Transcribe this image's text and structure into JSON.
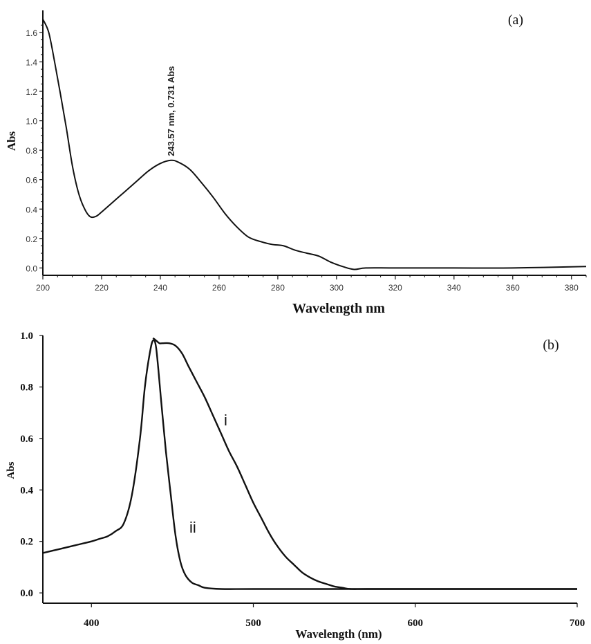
{
  "chart_data": [
    {
      "type": "line",
      "panel_label": "(a)",
      "title": "",
      "xlabel": "Wavelength nm",
      "ylabel": "Abs",
      "xlim": [
        200,
        385
      ],
      "ylim": [
        -0.05,
        1.75
      ],
      "xticks": [
        "200",
        "220",
        "240",
        "260",
        "280",
        "300",
        "320",
        "340",
        "360",
        "380"
      ],
      "yticks": [
        "0.0",
        "0.2",
        "0.4",
        "0.6",
        "0.8",
        "1.0",
        "1.2",
        "1.4",
        "1.6"
      ],
      "grid": false,
      "annotations": [
        {
          "text": "243.57 nm, 0.731 Abs",
          "x": 243.57,
          "y": 0.731
        }
      ],
      "series": [
        {
          "x": [
            200,
            202,
            204,
            206,
            208,
            210,
            212,
            214,
            216,
            218,
            220,
            224,
            228,
            232,
            236,
            240,
            243.57,
            246,
            250,
            254,
            258,
            262,
            266,
            270,
            274,
            278,
            282,
            286,
            290,
            294,
            298,
            302,
            306,
            310,
            320,
            340,
            360,
            385
          ],
          "y": [
            1.69,
            1.6,
            1.4,
            1.18,
            0.95,
            0.7,
            0.52,
            0.41,
            0.35,
            0.35,
            0.38,
            0.45,
            0.52,
            0.59,
            0.66,
            0.71,
            0.731,
            0.72,
            0.67,
            0.58,
            0.48,
            0.37,
            0.28,
            0.21,
            0.18,
            0.16,
            0.15,
            0.12,
            0.1,
            0.08,
            0.04,
            0.01,
            -0.01,
            0.0,
            0.0,
            0.0,
            0.0,
            0.01
          ]
        }
      ]
    },
    {
      "type": "line",
      "panel_label": "(b)",
      "title": "",
      "xlabel": "Wavelength (nm)",
      "ylabel": "Abs",
      "xlim": [
        370,
        700
      ],
      "ylim": [
        -0.04,
        1.0
      ],
      "xticks": [
        "400",
        "500",
        "600",
        "700"
      ],
      "yticks": [
        "0.0",
        "0.2",
        "0.4",
        "0.6",
        "0.8",
        "1.0"
      ],
      "grid": false,
      "series": [
        {
          "name": "i",
          "x": [
            438,
            440,
            442,
            444,
            448,
            452,
            456,
            460,
            465,
            470,
            475,
            480,
            485,
            490,
            495,
            500,
            505,
            510,
            515,
            520,
            525,
            530,
            535,
            540,
            545,
            550,
            555,
            560,
            570,
            600,
            650,
            700
          ],
          "y": [
            0.99,
            0.98,
            0.97,
            0.97,
            0.97,
            0.96,
            0.93,
            0.88,
            0.82,
            0.76,
            0.69,
            0.62,
            0.55,
            0.49,
            0.42,
            0.35,
            0.29,
            0.23,
            0.18,
            0.14,
            0.11,
            0.08,
            0.06,
            0.045,
            0.035,
            0.025,
            0.02,
            0.015,
            0.015,
            0.015,
            0.015,
            0.015
          ]
        },
        {
          "name": "ii",
          "x": [
            370,
            380,
            390,
            400,
            405,
            410,
            415,
            420,
            425,
            430,
            433,
            436,
            438,
            440,
            443,
            446,
            449,
            452,
            455,
            458,
            462,
            466,
            470,
            480,
            500,
            550,
            600,
            650,
            700
          ],
          "y": [
            0.155,
            0.17,
            0.185,
            0.2,
            0.21,
            0.22,
            0.24,
            0.27,
            0.38,
            0.6,
            0.8,
            0.93,
            0.98,
            0.95,
            0.75,
            0.55,
            0.38,
            0.22,
            0.12,
            0.07,
            0.04,
            0.03,
            0.02,
            0.015,
            0.015,
            0.015,
            0.015,
            0.015,
            0.015
          ]
        }
      ]
    }
  ]
}
